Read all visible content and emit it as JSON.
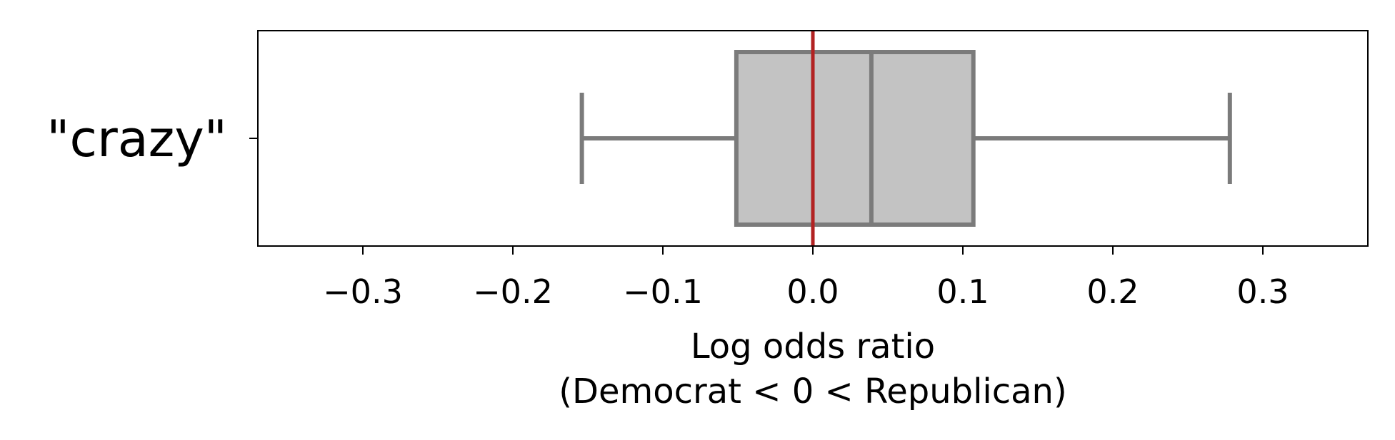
{
  "chart_data": {
    "type": "boxplot",
    "orientation": "horizontal",
    "category": "\"crazy\"",
    "box": {
      "whisker_low": -0.154,
      "q1": -0.051,
      "median": 0.039,
      "q3": 0.107,
      "whisker_high": 0.278
    },
    "reference_line": 0.0,
    "xlabel_line1": "Log odds ratio",
    "xlabel_line2": "(Democrat < 0 < Republican)",
    "xlim": [
      -0.37,
      0.37
    ],
    "xticks": [
      -0.3,
      -0.2,
      -0.1,
      0.0,
      0.1,
      0.2,
      0.3
    ],
    "xtick_labels": [
      "−0.3",
      "−0.2",
      "−0.1",
      "0.0",
      "0.1",
      "0.2",
      "0.3"
    ],
    "grid": false,
    "legend": "none",
    "colors": {
      "box_fill": "#c3c3c3",
      "box_edge": "#7b7b7b",
      "reference_line": "#b22222"
    }
  }
}
